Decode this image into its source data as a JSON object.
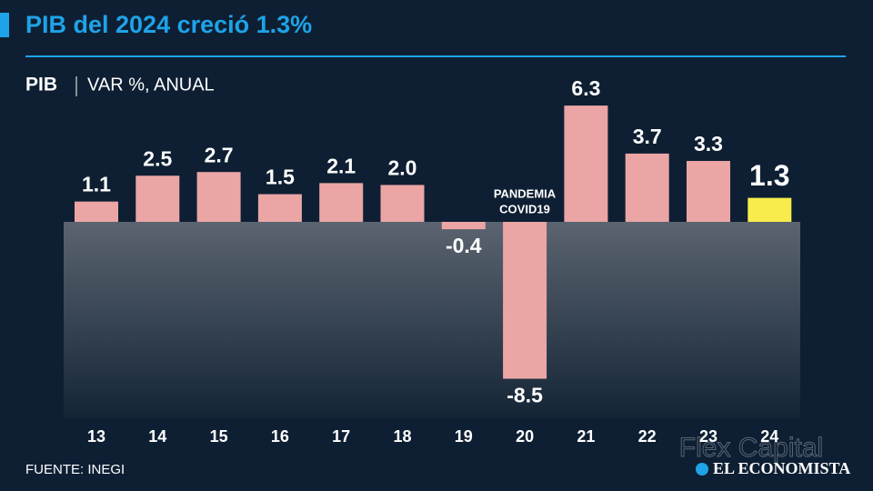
{
  "chart_data": {
    "type": "bar",
    "title": "PIB del 2024 creció 1.3%",
    "subtitle_bold": "PIB",
    "subtitle": "VAR %, ANUAL",
    "annotation": [
      "PANDEMIA",
      "COVID19"
    ],
    "source": "FUENTE: INEGI",
    "watermark": "Flex Capital",
    "brand": "EL ECONOMISTA",
    "categories": [
      "13",
      "14",
      "15",
      "16",
      "17",
      "18",
      "19",
      "20",
      "21",
      "22",
      "23",
      "24"
    ],
    "values": [
      1.1,
      2.5,
      2.7,
      1.5,
      2.1,
      2.0,
      -0.4,
      -8.5,
      6.3,
      3.7,
      3.3,
      1.3
    ],
    "value_labels": [
      "1.1",
      "2.5",
      "2.7",
      "1.5",
      "2.1",
      "2.0",
      "-0.4",
      "-8.5",
      "6.3",
      "3.7",
      "3.3",
      "1.3"
    ],
    "colors": [
      "#eba5a5",
      "#eba5a5",
      "#eba5a5",
      "#eba5a5",
      "#eba5a5",
      "#eba5a5",
      "#eba5a5",
      "#eba5a5",
      "#eba5a5",
      "#eba5a5",
      "#eba5a5",
      "#f7ec4c"
    ]
  }
}
